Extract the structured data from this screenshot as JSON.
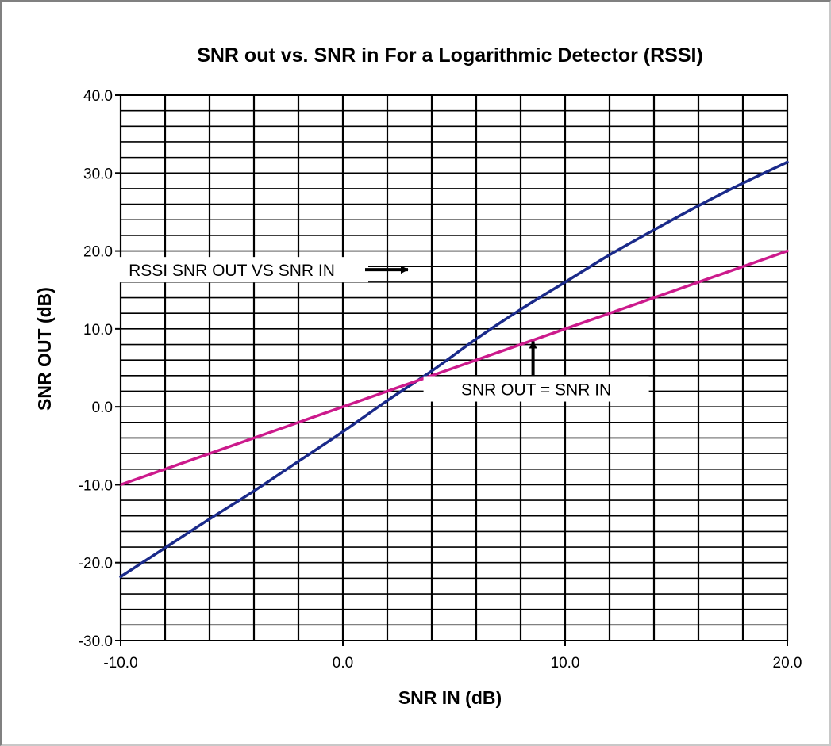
{
  "chart_data": {
    "type": "line",
    "title": "SNR out vs. SNR in For a Logarithmic Detector (RSSI)",
    "xlabel": "SNR IN (dB)",
    "ylabel": "SNR OUT (dB)",
    "xlim": [
      -10,
      20
    ],
    "ylim": [
      -30,
      40
    ],
    "x_ticks": [
      -10,
      0,
      10,
      20
    ],
    "x_tick_labels": [
      "-10.0",
      "0.0",
      "10.0",
      "20.0"
    ],
    "y_ticks": [
      -30,
      -20,
      -10,
      0,
      10,
      20,
      30,
      40
    ],
    "y_tick_labels": [
      "-30.0",
      "-20.0",
      "-10.0",
      "0.0",
      "10.0",
      "20.0",
      "30.0",
      "40.0"
    ],
    "grid": true,
    "grid_x_step": 2,
    "grid_y_step": 2,
    "series": [
      {
        "name": "RSSI SNR OUT VS SNR IN",
        "color": "#1a2a8a",
        "x": [
          -10,
          -8,
          -6,
          -4,
          -2,
          0,
          2,
          4,
          6,
          8,
          10,
          12,
          14,
          16,
          18,
          20
        ],
        "y": [
          -21.8,
          -18.1,
          -14.4,
          -10.8,
          -7.0,
          -3.2,
          0.8,
          4.6,
          8.7,
          12.5,
          16.0,
          19.5,
          22.7,
          25.8,
          28.7,
          31.4
        ]
      },
      {
        "name": "SNR OUT = SNR IN",
        "color": "#cc1a8c",
        "x": [
          -10,
          20
        ],
        "y": [
          -10,
          20
        ]
      }
    ],
    "annotations": [
      {
        "text": "RSSI SNR OUT VS SNR IN",
        "x": -5.0,
        "y": 17.6,
        "arrow": "right"
      },
      {
        "text": "SNR OUT = SNR IN",
        "x": 8.7,
        "y": 2.3,
        "arrow": "up"
      }
    ]
  }
}
